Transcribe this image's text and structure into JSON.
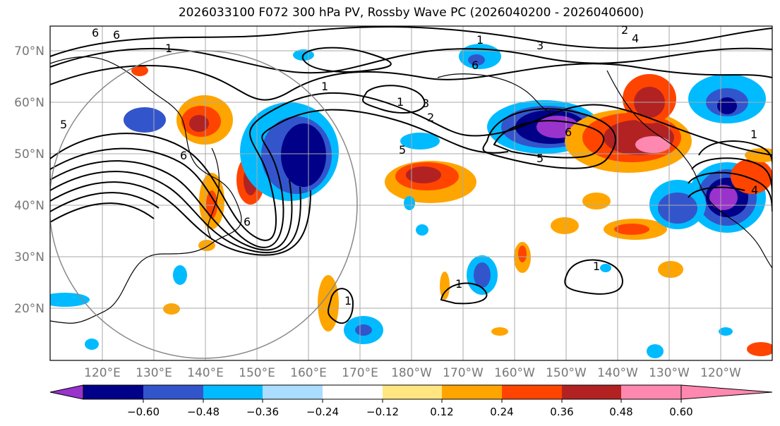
{
  "map": {
    "title": "2026033100 F072 300 hPa PV, Rossby Wave PC (2026040200 - 2026040600)",
    "lat_labels": [
      "70°N",
      "60°N",
      "50°N",
      "40°N",
      "30°N",
      "20°N"
    ],
    "lon_labels": [
      "120°E",
      "130°E",
      "140°E",
      "150°E",
      "160°E",
      "170°E",
      "180°W",
      "170°W",
      "160°W",
      "150°W",
      "140°W",
      "130°W",
      "120°W"
    ],
    "contour_labels": [
      "6",
      "4",
      "2",
      "1",
      "5",
      "3",
      "2",
      "1",
      "6",
      "6",
      "1",
      "6",
      "5",
      "4",
      "5",
      "3",
      "6",
      "1",
      "1",
      "1",
      "6",
      "1",
      "1"
    ],
    "colorbar": {
      "tick_labels": [
        "−0.60",
        "−0.48",
        "−0.36",
        "−0.24",
        "−0.12",
        "0.12",
        "0.24",
        "0.36",
        "0.48",
        "0.60"
      ],
      "colors": [
        "#9933cc",
        "#000088",
        "#3355cc",
        "#00bbff",
        "#aaddff",
        "#ffffff",
        "#ffe680",
        "#ffa500",
        "#ff4400",
        "#b22222",
        "#ff88b0"
      ]
    }
  }
}
